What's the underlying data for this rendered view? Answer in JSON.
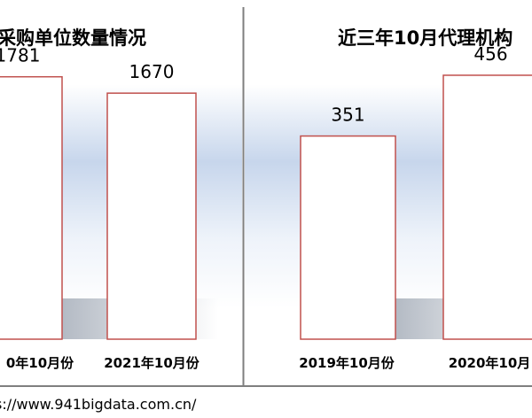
{
  "chart_data": [
    {
      "type": "bar",
      "title": "采购单位数量情况",
      "categories": [
        "0年10月份",
        "2021年10月份"
      ],
      "values": [
        1781,
        1670
      ],
      "ylim": [
        0,
        2200
      ],
      "grid": false,
      "legend": "none",
      "bar_edge_color": "#c0504d",
      "bar_fill_color": "#ffffff"
    },
    {
      "type": "bar",
      "title": "近三年10月代理机构",
      "categories": [
        "2019年10月份",
        "2020年10月"
      ],
      "values": [
        351,
        456
      ],
      "ylim": [
        0,
        560
      ],
      "grid": false,
      "legend": "none",
      "bar_edge_color": "#c0504d",
      "bar_fill_color": "#ffffff"
    }
  ],
  "footer": {
    "source_text": "s://www.941bigdata.com.cn/"
  }
}
